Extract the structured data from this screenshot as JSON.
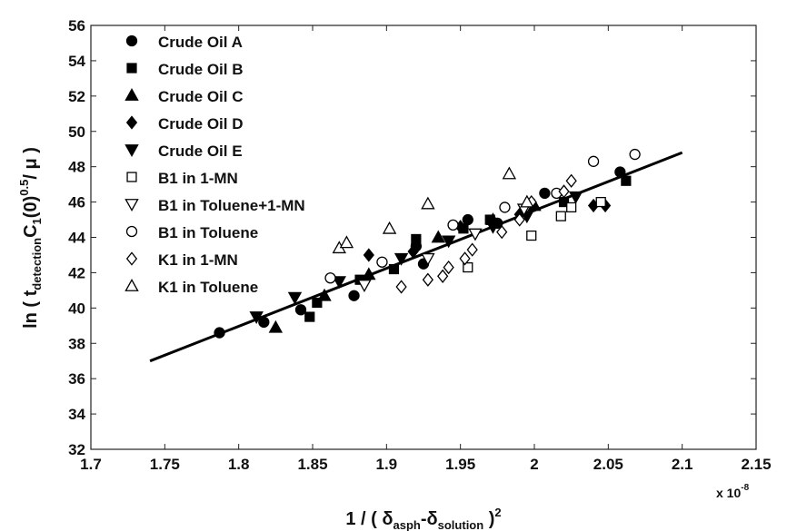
{
  "chart_data": {
    "type": "scatter",
    "xlabel": {
      "prefix": "1 / ( δ",
      "sub1": "asph",
      "mid": "-δ",
      "sub2": "solution",
      "suffix": " )",
      "sup": "2"
    },
    "ylabel": {
      "prefix": "ln ( t",
      "sub1": "detection",
      "mid": "C",
      "sub2": "1",
      "mid2": "(0)",
      "sup": "0.5",
      "suffix": "/ μ )"
    },
    "x_scale_note": "x 10",
    "x_scale_exp": "-8",
    "xlim": [
      1.7,
      2.15
    ],
    "ylim": [
      32,
      56
    ],
    "x_ticks": [
      1.7,
      1.75,
      1.8,
      1.85,
      1.9,
      1.95,
      2.0,
      2.05,
      2.1,
      2.15
    ],
    "x_tick_labels": [
      "1.7",
      "1.75",
      "1.8",
      "1.85",
      "1.9",
      "1.95",
      "2",
      "2.05",
      "2.1",
      "2.15"
    ],
    "y_ticks": [
      32,
      34,
      36,
      38,
      40,
      42,
      44,
      46,
      48,
      50,
      52,
      54,
      56
    ],
    "y_tick_labels": [
      "32",
      "34",
      "36",
      "38",
      "40",
      "42",
      "44",
      "46",
      "48",
      "50",
      "52",
      "54",
      "56"
    ],
    "grid": false,
    "legend_position": "top-left",
    "fit_line": {
      "x": [
        1.74,
        2.1
      ],
      "y": [
        37.0,
        48.8
      ]
    },
    "series": [
      {
        "name": "Crude Oil A",
        "marker": "circle",
        "filled": true,
        "points": [
          [
            1.787,
            38.6
          ],
          [
            1.817,
            39.2
          ],
          [
            1.842,
            39.9
          ],
          [
            1.878,
            40.7
          ],
          [
            1.92,
            43.5
          ],
          [
            1.925,
            42.5
          ],
          [
            1.955,
            45.0
          ],
          [
            1.975,
            44.8
          ],
          [
            2.007,
            46.5
          ],
          [
            2.058,
            47.7
          ]
        ]
      },
      {
        "name": "Crude Oil B",
        "marker": "square",
        "filled": true,
        "points": [
          [
            1.848,
            39.5
          ],
          [
            1.853,
            40.3
          ],
          [
            1.882,
            41.6
          ],
          [
            1.905,
            42.2
          ],
          [
            1.92,
            43.9
          ],
          [
            1.952,
            44.5
          ],
          [
            1.97,
            45.0
          ],
          [
            2.02,
            46.0
          ],
          [
            2.062,
            47.2
          ]
        ]
      },
      {
        "name": "Crude Oil C",
        "marker": "triangle-up",
        "filled": true,
        "points": [
          [
            1.825,
            38.9
          ],
          [
            1.858,
            40.7
          ],
          [
            1.888,
            41.9
          ],
          [
            1.935,
            44.0
          ],
          [
            1.972,
            45.0
          ],
          [
            2.0,
            45.8
          ]
        ]
      },
      {
        "name": "Crude Oil D",
        "marker": "diamond",
        "filled": true,
        "points": [
          [
            1.888,
            43.0
          ],
          [
            1.918,
            43.2
          ],
          [
            1.95,
            44.6
          ],
          [
            1.99,
            45.3
          ],
          [
            2.04,
            45.8
          ],
          [
            2.048,
            45.8
          ]
        ]
      },
      {
        "name": "Crude Oil E",
        "marker": "triangle-down",
        "filled": true,
        "points": [
          [
            1.812,
            39.5
          ],
          [
            1.838,
            40.6
          ],
          [
            1.868,
            41.5
          ],
          [
            1.91,
            42.8
          ],
          [
            1.942,
            43.8
          ],
          [
            1.972,
            44.6
          ],
          [
            1.995,
            45.2
          ],
          [
            2.028,
            46.3
          ]
        ]
      },
      {
        "name": "B1 in 1-MN",
        "marker": "square",
        "filled": false,
        "points": [
          [
            1.955,
            42.3
          ],
          [
            1.998,
            44.1
          ],
          [
            2.018,
            45.2
          ],
          [
            2.025,
            45.7
          ],
          [
            2.045,
            46.0
          ]
        ]
      },
      {
        "name": "B1 in Toluene+1-MN",
        "marker": "triangle-down",
        "filled": false,
        "points": [
          [
            1.885,
            41.3
          ],
          [
            1.928,
            42.8
          ],
          [
            1.96,
            44.2
          ],
          [
            1.993,
            45.6
          ]
        ]
      },
      {
        "name": "B1 in Toluene",
        "marker": "circle",
        "filled": false,
        "points": [
          [
            1.862,
            41.7
          ],
          [
            1.897,
            42.6
          ],
          [
            1.945,
            44.7
          ],
          [
            1.98,
            45.7
          ],
          [
            2.015,
            46.5
          ],
          [
            2.04,
            48.3
          ],
          [
            2.068,
            48.7
          ]
        ]
      },
      {
        "name": "K1 in 1-MN",
        "marker": "diamond",
        "filled": false,
        "points": [
          [
            1.91,
            41.2
          ],
          [
            1.928,
            41.6
          ],
          [
            1.938,
            41.8
          ],
          [
            1.942,
            42.3
          ],
          [
            1.953,
            42.8
          ],
          [
            1.958,
            43.3
          ],
          [
            1.978,
            44.3
          ],
          [
            1.99,
            45.0
          ],
          [
            1.998,
            46.0
          ],
          [
            2.02,
            46.6
          ],
          [
            2.025,
            47.2
          ]
        ]
      },
      {
        "name": "K1 in Toluene",
        "marker": "triangle-up",
        "filled": false,
        "points": [
          [
            1.868,
            43.4
          ],
          [
            1.873,
            43.7
          ],
          [
            1.902,
            44.5
          ],
          [
            1.928,
            45.9
          ],
          [
            1.983,
            47.6
          ],
          [
            1.995,
            46.0
          ]
        ]
      }
    ]
  }
}
